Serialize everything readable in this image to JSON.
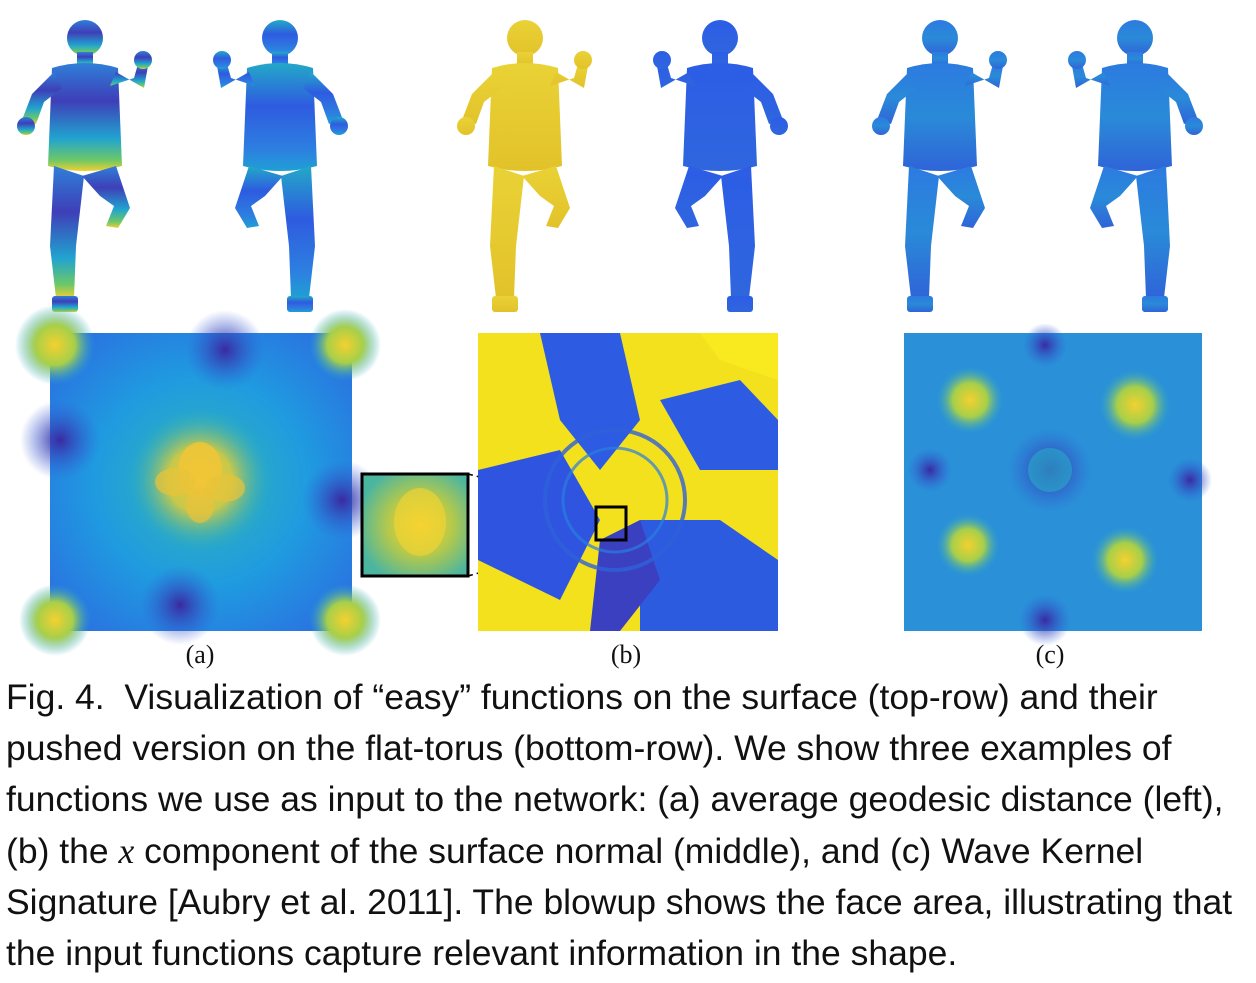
{
  "panels": [
    {
      "label": "(a)"
    },
    {
      "label": "(b)"
    },
    {
      "label": "(c)"
    }
  ],
  "colors": {
    "colormap": [
      "#3e26a8",
      "#2d58e6",
      "#1f9be0",
      "#19bfb7",
      "#7fcb57",
      "#f5d633",
      "#f9fb15"
    ],
    "inset_border": "#000000",
    "figure_outline": "#000000"
  },
  "caption": {
    "label": "Fig. 4.",
    "text_before_var": "Visualization of “easy” functions on the surface (top-row) and their pushed version on the flat-torus (bottom-row). We show three examples of functions we use as input to the network: (a) average geodesic distance (left), (b) the ",
    "var": "x",
    "text_after_var": " component of the surface normal (middle), and (c) Wave Kernel Signature [Aubry et al. 2011]. The blowup shows the face area, illustrating that the input functions capture relevant information in the shape."
  }
}
